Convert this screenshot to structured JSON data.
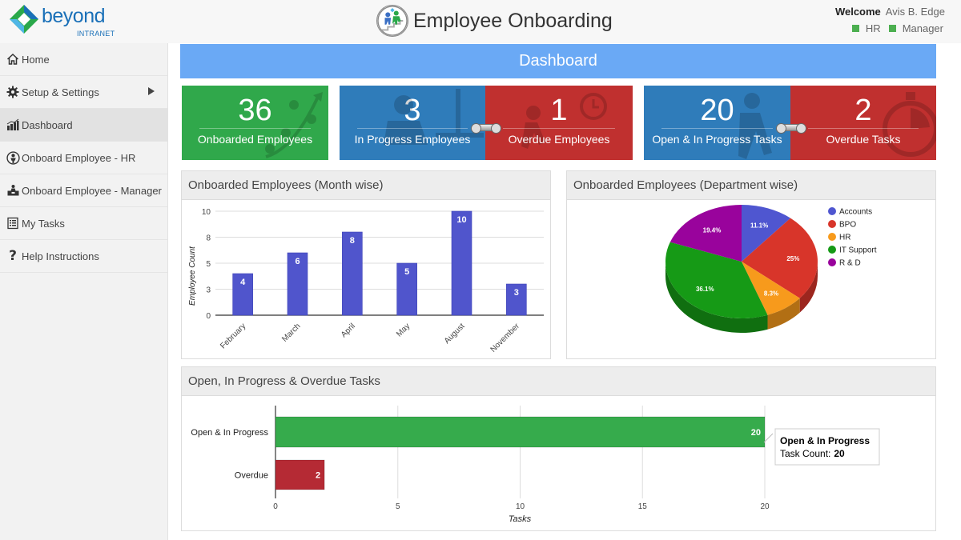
{
  "header": {
    "logo_text": "beyond",
    "logo_subtext": "INTRANET",
    "app_title": "Employee Onboarding",
    "welcome_label": "Welcome",
    "user_name": "Avis B. Edge",
    "roles": [
      "HR",
      "Manager"
    ],
    "role_color": "#4caf50"
  },
  "sidebar": {
    "items": [
      {
        "label": "Home",
        "icon": "home-icon"
      },
      {
        "label": "Setup & Settings",
        "icon": "gear-icon",
        "has_submenu": true
      },
      {
        "label": "Dashboard",
        "icon": "bar-chart-icon",
        "active": true
      },
      {
        "label": "Onboard Employee - HR",
        "icon": "person-badge-icon"
      },
      {
        "label": "Onboard Employee - Manager",
        "icon": "manager-desk-icon"
      },
      {
        "label": "My Tasks",
        "icon": "clipboard-list-icon"
      },
      {
        "label": "Help Instructions",
        "icon": "question-icon"
      }
    ]
  },
  "dashboard": {
    "title": "Dashboard",
    "tiles": [
      {
        "value": "36",
        "label": "Onboarded Employees",
        "color": "#30a84b"
      },
      {
        "value": "3",
        "label": "In Progress Employees",
        "color": "#2f7cba"
      },
      {
        "value": "1",
        "label": "Overdue Employees",
        "color": "#c0302f"
      },
      {
        "value": "20",
        "label": "Open & In Progress Tasks",
        "color": "#2f7cba"
      },
      {
        "value": "2",
        "label": "Overdue Tasks",
        "color": "#c0302f"
      }
    ]
  },
  "chart_data": [
    {
      "type": "bar",
      "title": "Onboarded Employees (Month wise)",
      "categories": [
        "February",
        "March",
        "April",
        "May",
        "August",
        "November"
      ],
      "values": [
        4,
        6,
        8,
        5,
        10,
        3
      ],
      "xlabel": "",
      "ylabel": "Employee Count",
      "yticks": [
        "0",
        "3",
        "5",
        "8",
        "10"
      ],
      "ytick_values": [
        0,
        2.5,
        5,
        7.5,
        10
      ],
      "ylim": [
        0,
        10
      ],
      "grid": true,
      "color": "#5055cc"
    },
    {
      "type": "pie",
      "title": "Onboarded Employees (Department wise)",
      "categories": [
        "Accounts",
        "BPO",
        "HR",
        "IT Support",
        "R & D"
      ],
      "values": [
        11.1,
        25,
        8.3,
        36.1,
        19.4
      ],
      "labels": [
        "11.1%",
        "25%",
        "8.3%",
        "36.1%",
        "19.4%"
      ],
      "colors": [
        "#4f56d0",
        "#d8352a",
        "#f79a1c",
        "#169a16",
        "#99039c"
      ],
      "legend": "right"
    },
    {
      "type": "bar",
      "orientation": "horizontal",
      "title": "Open, In Progress & Overdue Tasks",
      "categories": [
        "Open & In Progress",
        "Overdue"
      ],
      "values": [
        20,
        2
      ],
      "colors": [
        "#36ab4c",
        "#b52a34"
      ],
      "xlabel": "Tasks",
      "xticks": [
        "0",
        "5",
        "10",
        "15",
        "20"
      ],
      "xlim": [
        0,
        20
      ],
      "grid": true,
      "tooltip": {
        "title": "Open & In Progress",
        "label": "Task Count:",
        "value": "20"
      }
    }
  ]
}
